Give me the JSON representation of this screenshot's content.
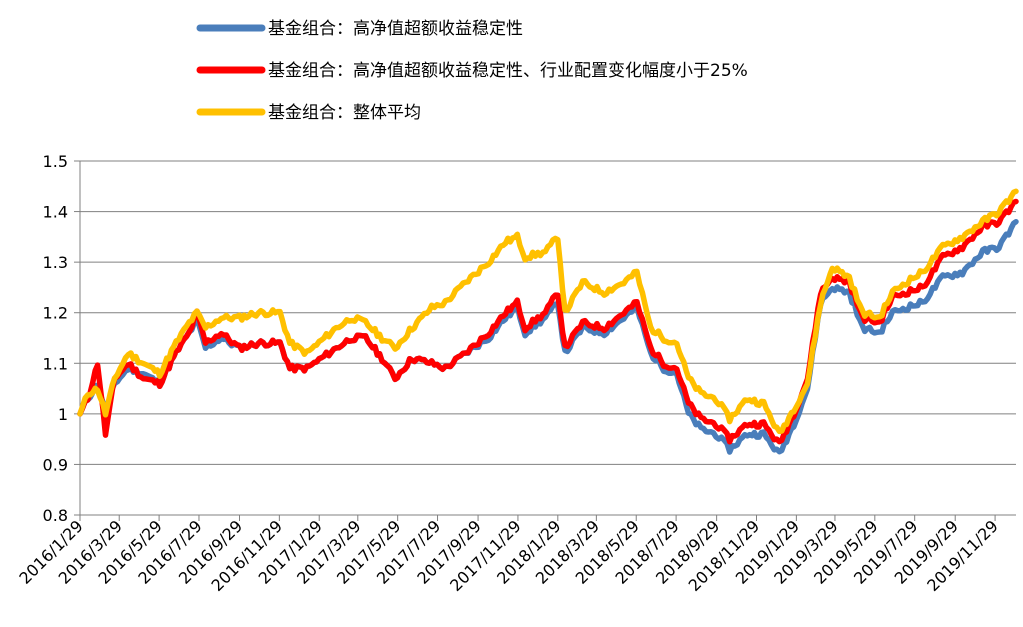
{
  "chart_data": {
    "type": "line",
    "title": "",
    "xlabel": "",
    "ylabel": "",
    "ylim": [
      0.8,
      1.5
    ],
    "yticks": [
      "0.8",
      "0.9",
      "1",
      "1.1",
      "1.2",
      "1.3",
      "1.4",
      "1.5"
    ],
    "x_start": "2016/1/29",
    "x_end": "2019/12/31",
    "x_tick_labels": [
      "2016/1/29",
      "2016/3/29",
      "2016/5/29",
      "2016/7/29",
      "2016/9/29",
      "2016/11/29",
      "2017/1/29",
      "2017/3/29",
      "2017/5/29",
      "2017/7/29",
      "2017/9/29",
      "2017/11/29",
      "2018/1/29",
      "2018/3/29",
      "2018/5/29",
      "2018/7/29",
      "2018/9/29",
      "2018/11/29",
      "2019/1/29",
      "2019/3/29",
      "2019/5/29",
      "2019/7/29",
      "2019/9/29",
      "2019/11/29"
    ],
    "grid": "horizontal",
    "legend_position": "top-left",
    "series": [
      {
        "name": "基金组合：高净值超额收益稳定性",
        "color": "#4a7ebb",
        "points": [
          [
            "2016/1/29",
            1.0
          ],
          [
            "2016/2/10",
            1.03
          ],
          [
            "2016/2/25",
            1.06
          ],
          [
            "2016/3/8",
            1.0
          ],
          [
            "2016/3/22",
            1.06
          ],
          [
            "2016/4/12",
            1.09
          ],
          [
            "2016/5/5",
            1.08
          ],
          [
            "2016/5/30",
            1.06
          ],
          [
            "2016/6/24",
            1.12
          ],
          [
            "2016/7/14",
            1.16
          ],
          [
            "2016/7/26",
            1.185
          ],
          [
            "2016/8/8",
            1.13
          ],
          [
            "2016/9/1",
            1.15
          ],
          [
            "2016/9/29",
            1.13
          ],
          [
            "2016/10/28",
            1.14
          ],
          [
            "2016/11/30",
            1.14
          ],
          [
            "2016/12/15",
            1.09
          ],
          [
            "2017/1/10",
            1.09
          ],
          [
            "2017/2/24",
            1.13
          ],
          [
            "2017/3/20",
            1.15
          ],
          [
            "2017/4/10",
            1.15
          ],
          [
            "2017/5/5",
            1.11
          ],
          [
            "2017/5/25",
            1.07
          ],
          [
            "2017/6/20",
            1.11
          ],
          [
            "2017/7/20",
            1.1
          ],
          [
            "2017/8/10",
            1.09
          ],
          [
            "2017/9/10",
            1.12
          ],
          [
            "2017/10/15",
            1.15
          ],
          [
            "2017/11/10",
            1.19
          ],
          [
            "2017/11/28",
            1.21
          ],
          [
            "2017/12/10",
            1.16
          ],
          [
            "2018/1/10",
            1.19
          ],
          [
            "2018/1/29",
            1.22
          ],
          [
            "2018/2/9",
            1.12
          ],
          [
            "2018/3/8",
            1.17
          ],
          [
            "2018/4/10",
            1.16
          ],
          [
            "2018/5/10",
            1.19
          ],
          [
            "2018/5/30",
            1.21
          ],
          [
            "2018/6/20",
            1.12
          ],
          [
            "2018/7/10",
            1.09
          ],
          [
            "2018/7/30",
            1.08
          ],
          [
            "2018/8/17",
            1.0
          ],
          [
            "2018/9/5",
            0.97
          ],
          [
            "2018/9/28",
            0.96
          ],
          [
            "2018/10/19",
            0.93
          ],
          [
            "2018/11/15",
            0.96
          ],
          [
            "2018/12/10",
            0.96
          ],
          [
            "2019/1/3",
            0.92
          ],
          [
            "2019/1/25",
            0.98
          ],
          [
            "2019/2/15",
            1.05
          ],
          [
            "2019/3/7",
            1.22
          ],
          [
            "2019/3/25",
            1.25
          ],
          [
            "2019/4/20",
            1.24
          ],
          [
            "2019/5/10",
            1.17
          ],
          [
            "2019/6/5",
            1.16
          ],
          [
            "2019/6/25",
            1.2
          ],
          [
            "2019/7/15",
            1.21
          ],
          [
            "2019/8/10",
            1.22
          ],
          [
            "2019/9/10",
            1.27
          ],
          [
            "2019/10/10",
            1.28
          ],
          [
            "2019/11/10",
            1.32
          ],
          [
            "2019/12/5",
            1.33
          ],
          [
            "2019/12/31",
            1.38
          ]
        ]
      },
      {
        "name": "基金组合：高净值超额收益稳定性、行业配置变化幅度小于25%",
        "color": "#ff0000",
        "points": [
          [
            "2016/1/29",
            1.0
          ],
          [
            "2016/2/10",
            1.03
          ],
          [
            "2016/2/25",
            1.1
          ],
          [
            "2016/3/8",
            0.96
          ],
          [
            "2016/3/22",
            1.07
          ],
          [
            "2016/4/12",
            1.1
          ],
          [
            "2016/5/5",
            1.07
          ],
          [
            "2016/5/30",
            1.06
          ],
          [
            "2016/6/24",
            1.12
          ],
          [
            "2016/7/14",
            1.16
          ],
          [
            "2016/7/26",
            1.2
          ],
          [
            "2016/8/8",
            1.14
          ],
          [
            "2016/9/1",
            1.16
          ],
          [
            "2016/9/29",
            1.13
          ],
          [
            "2016/10/28",
            1.14
          ],
          [
            "2016/11/30",
            1.14
          ],
          [
            "2016/12/15",
            1.09
          ],
          [
            "2017/1/10",
            1.09
          ],
          [
            "2017/2/24",
            1.13
          ],
          [
            "2017/3/20",
            1.15
          ],
          [
            "2017/4/10",
            1.15
          ],
          [
            "2017/5/5",
            1.11
          ],
          [
            "2017/5/25",
            1.07
          ],
          [
            "2017/6/20",
            1.11
          ],
          [
            "2017/7/20",
            1.1
          ],
          [
            "2017/8/10",
            1.09
          ],
          [
            "2017/9/10",
            1.12
          ],
          [
            "2017/10/15",
            1.16
          ],
          [
            "2017/11/10",
            1.2
          ],
          [
            "2017/11/28",
            1.22
          ],
          [
            "2017/12/10",
            1.17
          ],
          [
            "2018/1/10",
            1.2
          ],
          [
            "2018/1/29",
            1.24
          ],
          [
            "2018/2/9",
            1.13
          ],
          [
            "2018/3/8",
            1.18
          ],
          [
            "2018/4/10",
            1.17
          ],
          [
            "2018/5/10",
            1.2
          ],
          [
            "2018/5/30",
            1.22
          ],
          [
            "2018/6/20",
            1.13
          ],
          [
            "2018/7/10",
            1.1
          ],
          [
            "2018/7/30",
            1.09
          ],
          [
            "2018/8/17",
            1.02
          ],
          [
            "2018/9/5",
            0.99
          ],
          [
            "2018/9/28",
            0.98
          ],
          [
            "2018/10/19",
            0.95
          ],
          [
            "2018/11/15",
            0.98
          ],
          [
            "2018/12/10",
            0.98
          ],
          [
            "2019/1/3",
            0.94
          ],
          [
            "2019/1/25",
            1.0
          ],
          [
            "2019/2/15",
            1.07
          ],
          [
            "2019/3/7",
            1.24
          ],
          [
            "2019/3/25",
            1.27
          ],
          [
            "2019/4/20",
            1.26
          ],
          [
            "2019/5/10",
            1.19
          ],
          [
            "2019/6/5",
            1.18
          ],
          [
            "2019/6/25",
            1.23
          ],
          [
            "2019/7/15",
            1.24
          ],
          [
            "2019/8/10",
            1.25
          ],
          [
            "2019/9/10",
            1.31
          ],
          [
            "2019/10/10",
            1.33
          ],
          [
            "2019/11/10",
            1.37
          ],
          [
            "2019/12/5",
            1.38
          ],
          [
            "2019/12/31",
            1.42
          ]
        ]
      },
      {
        "name": "基金组合：整体平均",
        "color": "#ffc000",
        "points": [
          [
            "2016/1/29",
            1.0
          ],
          [
            "2016/2/10",
            1.04
          ],
          [
            "2016/2/25",
            1.05
          ],
          [
            "2016/3/8",
            1.0
          ],
          [
            "2016/3/22",
            1.07
          ],
          [
            "2016/4/12",
            1.12
          ],
          [
            "2016/5/5",
            1.1
          ],
          [
            "2016/5/30",
            1.08
          ],
          [
            "2016/6/24",
            1.14
          ],
          [
            "2016/7/14",
            1.18
          ],
          [
            "2016/7/26",
            1.2
          ],
          [
            "2016/8/8",
            1.17
          ],
          [
            "2016/9/1",
            1.19
          ],
          [
            "2016/9/29",
            1.19
          ],
          [
            "2016/10/28",
            1.2
          ],
          [
            "2016/11/30",
            1.2
          ],
          [
            "2016/12/15",
            1.14
          ],
          [
            "2017/1/10",
            1.12
          ],
          [
            "2017/2/24",
            1.17
          ],
          [
            "2017/3/20",
            1.19
          ],
          [
            "2017/4/10",
            1.18
          ],
          [
            "2017/5/5",
            1.15
          ],
          [
            "2017/5/25",
            1.13
          ],
          [
            "2017/6/20",
            1.17
          ],
          [
            "2017/7/20",
            1.21
          ],
          [
            "2017/8/10",
            1.22
          ],
          [
            "2017/9/10",
            1.26
          ],
          [
            "2017/10/15",
            1.3
          ],
          [
            "2017/11/10",
            1.34
          ],
          [
            "2017/11/28",
            1.35
          ],
          [
            "2017/12/10",
            1.31
          ],
          [
            "2018/1/10",
            1.32
          ],
          [
            "2018/1/29",
            1.35
          ],
          [
            "2018/2/9",
            1.2
          ],
          [
            "2018/3/8",
            1.26
          ],
          [
            "2018/4/10",
            1.24
          ],
          [
            "2018/5/10",
            1.26
          ],
          [
            "2018/5/30",
            1.28
          ],
          [
            "2018/6/20",
            1.17
          ],
          [
            "2018/7/10",
            1.15
          ],
          [
            "2018/7/30",
            1.14
          ],
          [
            "2018/8/17",
            1.07
          ],
          [
            "2018/9/5",
            1.04
          ],
          [
            "2018/9/28",
            1.03
          ],
          [
            "2018/10/19",
            0.99
          ],
          [
            "2018/11/15",
            1.03
          ],
          [
            "2018/12/10",
            1.02
          ],
          [
            "2019/1/3",
            0.96
          ],
          [
            "2019/1/25",
            1.01
          ],
          [
            "2019/2/15",
            1.06
          ],
          [
            "2019/3/7",
            1.22
          ],
          [
            "2019/3/25",
            1.29
          ],
          [
            "2019/4/20",
            1.27
          ],
          [
            "2019/5/10",
            1.2
          ],
          [
            "2019/6/5",
            1.19
          ],
          [
            "2019/6/25",
            1.24
          ],
          [
            "2019/7/15",
            1.26
          ],
          [
            "2019/8/10",
            1.28
          ],
          [
            "2019/9/10",
            1.33
          ],
          [
            "2019/10/10",
            1.35
          ],
          [
            "2019/11/10",
            1.38
          ],
          [
            "2019/12/5",
            1.4
          ],
          [
            "2019/12/31",
            1.44
          ]
        ]
      }
    ]
  }
}
